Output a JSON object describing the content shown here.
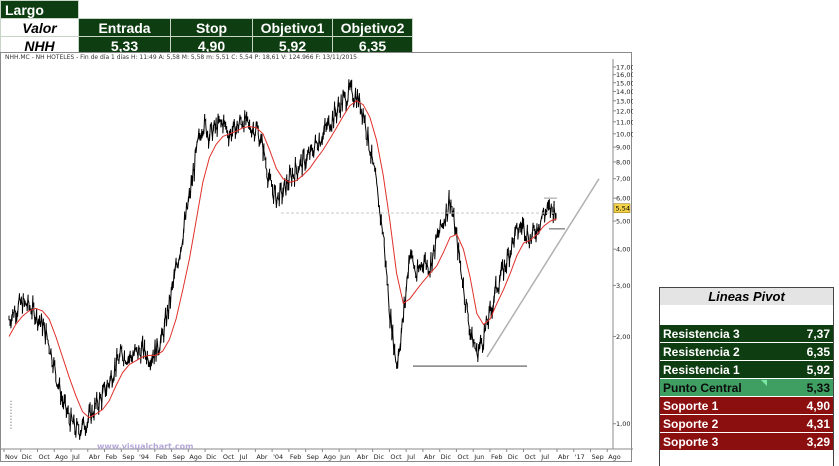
{
  "trade": {
    "side": "Largo",
    "header_label": "Valor",
    "columns": [
      "Entrada",
      "Stop",
      "Objetivo1",
      "Objetivo2"
    ],
    "ticker": "NHH",
    "values": [
      "5,33",
      "4,90",
      "5,92",
      "6,35"
    ]
  },
  "chart": {
    "header_text": "NHH.MC - NH HOTELES - Fin de día 1 días  H: 11:49  A: 5,58  M: 5,58  m: 5,51  C: 5,54  P:  18,61  V: 124.966  F: 13/11/2015",
    "watermark": "www.visualchart.com",
    "price_label": "5,54",
    "colors": {
      "price": "#000000",
      "ma": "#e0302a",
      "trendline": "#b0b0b0",
      "support": "#808080",
      "resistance_dash": "#c8c8c8",
      "price_label_bg": "#f4d24a"
    }
  },
  "pivot": {
    "title": "Lineas Pivot",
    "rows": [
      {
        "label": "Resistencia 3",
        "value": "7,37",
        "kind": "res"
      },
      {
        "label": "Resistencia 2",
        "value": "6,35",
        "kind": "res"
      },
      {
        "label": "Resistencia 1",
        "value": "5,92",
        "kind": "res"
      },
      {
        "label": "Punto Central",
        "value": "5,33",
        "kind": "cen"
      },
      {
        "label": "Soporte 1",
        "value": "4,90",
        "kind": "sup"
      },
      {
        "label": "Soporte 2",
        "value": "4,31",
        "kind": "sup"
      },
      {
        "label": "Soporte 3",
        "value": "3,29",
        "kind": "sup"
      }
    ]
  },
  "chart_data": {
    "type": "line",
    "y_scale": "log",
    "y_ticks": [
      "17,00",
      "16,00",
      "15,00",
      "14,00",
      "13,00",
      "12,00",
      "11,00",
      "10,00",
      "9,00",
      "8,00",
      "7,00",
      "6,00",
      "5,00",
      "4,00",
      "3,00",
      "2,00",
      "1,00"
    ],
    "x_tick_labels": [
      "Nov",
      "Dic",
      "Oct",
      "Ago",
      "Jul",
      "Abr",
      "Feb",
      "Sep",
      "'94",
      "Feb",
      "Sep",
      "Ago",
      "Dic",
      "Oct",
      "Jul",
      "Abr",
      "'04",
      "Feb",
      "Sep",
      "Ago",
      "Jun",
      "Abr",
      "Dic",
      "Oct",
      "Jul",
      "Abr",
      "Dic",
      "Oct",
      "Jun",
      "Feb",
      "Dic",
      "Oct",
      "Jul",
      "Abr",
      "'17",
      "Sep",
      "Ago"
    ],
    "series": [
      {
        "role": "price",
        "values": [
          2.3,
          2.5,
          2.6,
          2.55,
          2.4,
          2.2,
          1.9,
          1.5,
          1.2,
          1.05,
          0.95,
          0.98,
          1.05,
          1.15,
          1.25,
          1.4,
          1.6,
          1.75,
          1.7,
          1.75,
          1.8,
          1.7,
          1.8,
          2.0,
          2.6,
          3.4,
          4.5,
          6.0,
          8.5,
          11.0,
          10.0,
          10.5,
          11.0,
          10.0,
          10.5,
          11.2,
          10.5,
          10.5,
          9.0,
          6.8,
          6.0,
          6.3,
          7.0,
          7.6,
          8.0,
          8.4,
          9.3,
          10.0,
          11.0,
          12.0,
          13.0,
          14.0,
          13.5,
          12.0,
          9.0,
          6.5,
          4.5,
          2.4,
          1.6,
          2.3,
          4.0,
          3.2,
          3.7,
          3.5,
          4.3,
          5.0,
          6.0,
          4.3,
          3.0,
          2.1,
          1.75,
          2.0,
          2.4,
          3.0,
          3.4,
          4.0,
          4.6,
          4.9,
          4.3,
          4.8,
          5.3,
          5.5,
          5.54
        ]
      },
      {
        "role": "moving-average",
        "values": [
          2.0,
          2.2,
          2.35,
          2.45,
          2.5,
          2.45,
          2.3,
          2.0,
          1.7,
          1.45,
          1.25,
          1.1,
          1.05,
          1.08,
          1.12,
          1.2,
          1.35,
          1.5,
          1.6,
          1.65,
          1.7,
          1.72,
          1.72,
          1.78,
          1.95,
          2.3,
          2.9,
          3.7,
          5.0,
          6.8,
          8.3,
          9.2,
          9.8,
          10.0,
          10.2,
          10.5,
          10.6,
          10.5,
          10.0,
          8.8,
          7.6,
          7.0,
          6.8,
          6.9,
          7.2,
          7.6,
          8.2,
          8.8,
          9.6,
          10.5,
          11.5,
          12.5,
          13.0,
          12.6,
          11.4,
          9.5,
          7.2,
          5.0,
          3.3,
          2.6,
          2.7,
          2.9,
          3.1,
          3.3,
          3.5,
          3.9,
          4.4,
          4.5,
          4.0,
          3.2,
          2.4,
          2.2,
          2.3,
          2.6,
          2.9,
          3.3,
          3.8,
          4.2,
          4.3,
          4.5,
          4.8,
          5.0,
          5.1
        ]
      }
    ],
    "reference_lines": [
      {
        "role": "resistance",
        "value": 5.33
      },
      {
        "role": "support",
        "value": 1.58
      },
      {
        "role": "trendline",
        "from": 1.7,
        "to": 7.0
      }
    ],
    "last_price": 5.54,
    "grid": false,
    "legend": "none"
  }
}
